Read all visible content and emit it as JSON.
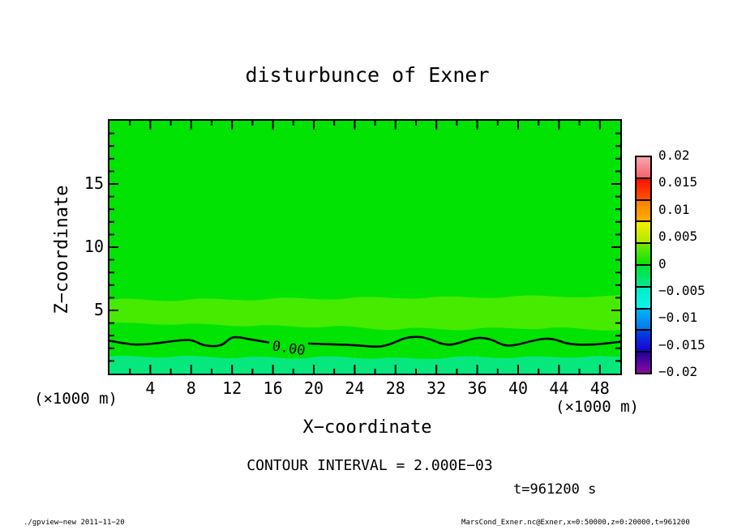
{
  "title": "disturbunce of Exner",
  "axes": {
    "x": {
      "label": "X−coordinate",
      "units": "(×1000 m)",
      "tick_values": [
        4,
        8,
        12,
        16,
        20,
        24,
        28,
        32,
        36,
        40,
        44,
        48
      ],
      "minor_interval": 2,
      "range": [
        0,
        50
      ]
    },
    "z": {
      "label": "Z−coordinate",
      "units": "(×1000 m)",
      "tick_values": [
        5,
        10,
        15
      ],
      "minor_interval": 1,
      "range": [
        0,
        20
      ]
    }
  },
  "colorbar": {
    "labels": [
      "0.02",
      "0.015",
      "0.01",
      "0.005",
      "0",
      "−0.005",
      "−0.01",
      "−0.015",
      "−0.02"
    ],
    "boxes": [
      [
        "#f7a6ab",
        "#f3636c"
      ],
      [
        "#fd1000",
        "#fd5300"
      ],
      [
        "#ff7f00",
        "#ffae00"
      ],
      [
        "#f6ef00",
        "#b0e900"
      ],
      [
        "#72e900",
        "#0ae303"
      ],
      [
        "#00e438",
        "#00e98f"
      ],
      [
        "#00edc4",
        "#0ff2ee"
      ],
      [
        "#00b4f6",
        "#0077ee"
      ],
      [
        "#0046e6",
        "#1a00cf"
      ],
      [
        "#23009e",
        "#8d0ba1"
      ]
    ]
  },
  "contour": {
    "label": "0.00",
    "interval_text": "CONTOUR INTERVAL = 2.000E−03"
  },
  "time_text": "t=961200 s",
  "footer": {
    "left": "./gpview−new  2011−11−20",
    "right": "MarsCond_Exner.nc@Exner,x=0:50000,z=0:20000,t=961200"
  },
  "colors": {
    "field-green": "#00e303",
    "band-green": "#47eb00",
    "mint-green": "#06e87e",
    "axis-black": "#000000",
    "page-bg": "#ffffff"
  },
  "chart_data": {
    "type": "heatmap",
    "title": "disturbunce of Exner",
    "xlabel": "X-coordinate (×1000 m)",
    "ylabel": "Z-coordinate (×1000 m)",
    "xlim": [
      0,
      50
    ],
    "ylim": [
      0,
      20
    ],
    "x_major_ticks": [
      4,
      8,
      12,
      16,
      20,
      24,
      28,
      32,
      36,
      40,
      44,
      48
    ],
    "x_minor_interval": 2,
    "y_major_ticks": [
      5,
      10,
      15
    ],
    "y_minor_interval": 1,
    "colorbar": {
      "min": -0.02,
      "max": 0.02,
      "label_step": 0.005,
      "box_step": 0.004,
      "shade_step": 0.002
    },
    "contour_interval": 0.002,
    "zero_contour_points_x_z": [
      [
        0,
        2.6
      ],
      [
        2.4,
        2.3
      ],
      [
        4.5,
        2.45
      ],
      [
        6.5,
        2.65
      ],
      [
        7.7,
        2.65
      ],
      [
        9.5,
        2.25
      ],
      [
        12,
        2.9
      ],
      [
        14,
        2.8
      ],
      [
        16,
        2.6
      ],
      [
        18,
        2.5
      ],
      [
        20,
        2.45
      ],
      [
        22.5,
        2.4
      ],
      [
        25,
        2.3
      ],
      [
        26.5,
        2.2
      ],
      [
        29.5,
        2.85
      ],
      [
        32.5,
        2.3
      ],
      [
        35.5,
        2.8
      ],
      [
        38.5,
        2.2
      ],
      [
        41.5,
        2.75
      ],
      [
        44.5,
        2.35
      ],
      [
        47,
        2.35
      ],
      [
        50,
        2.55
      ]
    ],
    "field_bands": [
      {
        "value_range": [
          0,
          0.002
        ],
        "description": "dominant field value over most of the domain (z ≈ 2.5–20)"
      },
      {
        "value_range": [
          0.002,
          0.004
        ],
        "description": "wavy lighter-green horizontal band around z ≈ 4–6"
      },
      {
        "value_range": [
          -0.002,
          0
        ],
        "description": "thin layer just below the 0.00 contour (z ≈ 0–2.5)"
      },
      {
        "value_range": [
          -0.004,
          -0.002
        ],
        "description": "wavy mint-green pockets near the surface (z < 1.5)"
      }
    ],
    "annotations": [
      "0.00 contour label at x≈16–19, z≈2.5",
      "CONTOUR INTERVAL = 2.000E-03",
      "t=961200 s"
    ],
    "legend_position": "right colorbar",
    "grid": false
  }
}
